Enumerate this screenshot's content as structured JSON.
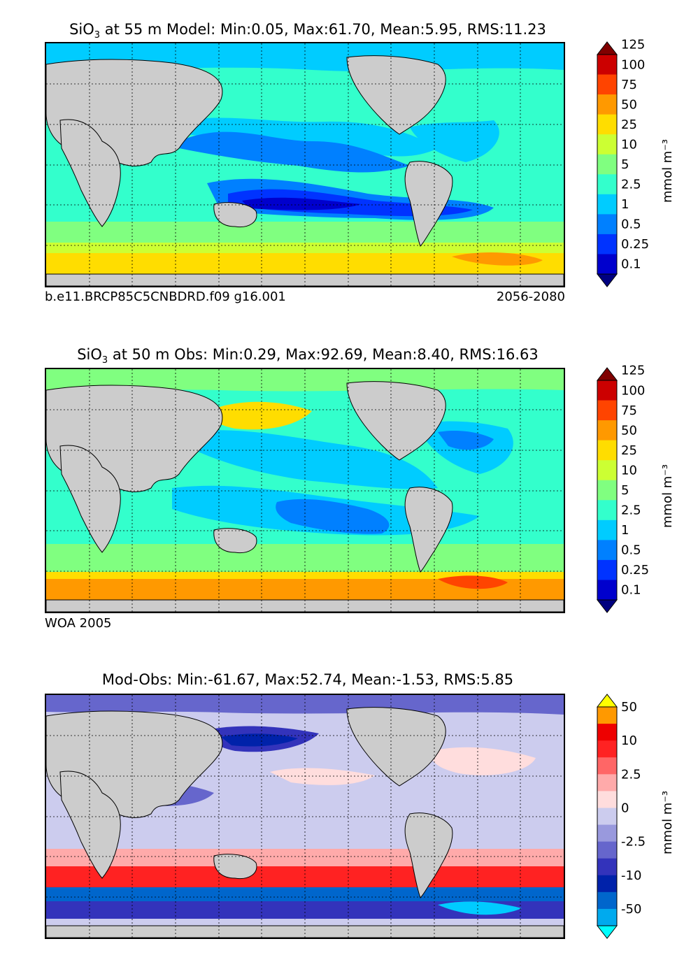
{
  "panels": [
    {
      "id": "model",
      "title_species": "SiO",
      "title_sub": "3",
      "title_rest": " at 55 m Model: Min:0.05, Max:61.70, Mean:5.95, RMS:11.23",
      "note_left": "b.e11.BRCP85C5CNBDRD.f09 g16.001",
      "note_right": "2056-2080",
      "colorbar": {
        "unit_label": "mmol m⁻³",
        "tick_labels": [
          "0.1",
          "0.25",
          "0.5",
          "1",
          "2.5",
          "5",
          "10",
          "25",
          "50",
          "75",
          "100",
          "125"
        ],
        "colors": [
          "#000080",
          "#0000cd",
          "#0033ff",
          "#0080ff",
          "#00ccff",
          "#33ffcc",
          "#80ff80",
          "#ccff33",
          "#ffdd00",
          "#ff9900",
          "#ff4400",
          "#cc0000",
          "#800000"
        ]
      }
    },
    {
      "id": "obs",
      "title_species": "SiO",
      "title_sub": "3",
      "title_rest": " at 50 m Obs: Min:0.29, Max:92.69, Mean:8.40, RMS:16.63",
      "note_left": "WOA 2005",
      "note_right": "",
      "colorbar": {
        "unit_label": "mmol m⁻³",
        "tick_labels": [
          "0.1",
          "0.25",
          "0.5",
          "1",
          "2.5",
          "5",
          "10",
          "25",
          "50",
          "75",
          "100",
          "125"
        ],
        "colors": [
          "#000080",
          "#0000cd",
          "#0033ff",
          "#0080ff",
          "#00ccff",
          "#33ffcc",
          "#80ff80",
          "#ccff33",
          "#ffdd00",
          "#ff9900",
          "#ff4400",
          "#cc0000",
          "#800000"
        ]
      }
    },
    {
      "id": "diff",
      "title_species": "",
      "title_sub": "",
      "title_rest": "Mod-Obs: Min:-61.67, Max:52.74, Mean:-1.53, RMS:5.85",
      "note_left": "",
      "note_right": "",
      "colorbar": {
        "unit_label": "mmol m⁻³",
        "tick_labels": [
          "-50",
          "-10",
          "-2.5",
          "0",
          "2.5",
          "10",
          "50"
        ],
        "colors": [
          "#00ffff",
          "#00aaee",
          "#0066cc",
          "#0022aa",
          "#3333bb",
          "#6666cc",
          "#9999dd",
          "#ccccee",
          "#ffdddd",
          "#ffaaaa",
          "#ff6666",
          "#ff2222",
          "#ee0000",
          "#ff9900",
          "#ffff00"
        ]
      }
    }
  ],
  "chart_data": [
    {
      "type": "heatmap",
      "title": "SiO3 at 55 m Model: Min:0.05, Max:61.70, Mean:5.95, RMS:11.23",
      "variable": "SiO3",
      "depth_m": 55,
      "source": "Model",
      "stats": {
        "min": 0.05,
        "max": 61.7,
        "mean": 5.95,
        "rms": 11.23
      },
      "case": "b.e11.BRCP85C5CNBDRD.f09 g16.001",
      "period": "2056-2080",
      "units": "mmol m^-3",
      "levels": [
        0.1,
        0.25,
        0.5,
        1,
        2.5,
        5,
        10,
        25,
        50,
        75,
        100,
        125
      ],
      "extend": "both"
    },
    {
      "type": "heatmap",
      "title": "SiO3 at 50 m Obs: Min:0.29, Max:92.69, Mean:8.40, RMS:16.63",
      "variable": "SiO3",
      "depth_m": 50,
      "source": "WOA 2005",
      "stats": {
        "min": 0.29,
        "max": 92.69,
        "mean": 8.4,
        "rms": 16.63
      },
      "units": "mmol m^-3",
      "levels": [
        0.1,
        0.25,
        0.5,
        1,
        2.5,
        5,
        10,
        25,
        50,
        75,
        100,
        125
      ],
      "extend": "both"
    },
    {
      "type": "heatmap",
      "title": "Mod-Obs: Min:-61.67, Max:52.74, Mean:-1.53, RMS:5.85",
      "stats": {
        "min": -61.67,
        "max": 52.74,
        "mean": -1.53,
        "rms": 5.85
      },
      "units": "mmol m^-3",
      "tick_levels": [
        -50,
        -10,
        -2.5,
        0,
        2.5,
        10,
        50
      ],
      "extend": "both"
    }
  ]
}
